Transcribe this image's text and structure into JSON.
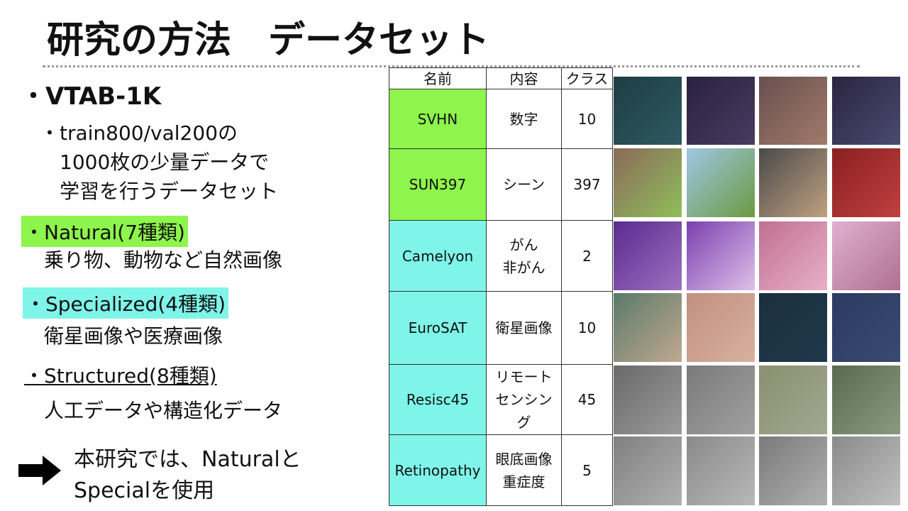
{
  "title": "研究の方法　データセット",
  "left": {
    "bullet1": "・VTAB-1K",
    "bullet1_sub_lines": [
      "・train800/val200の",
      "1000枚の少量データで",
      "学習を行うデータセット"
    ],
    "natural": {
      "label": "・Natural(7種類)",
      "desc": "乗り物、動物など自然画像"
    },
    "specialized": {
      "label": "・Specialized(4種類)",
      "desc": "衛星画像や医療画像"
    },
    "structured": {
      "label": "・Structured(8種類)",
      "desc": "人工データや構造化データ"
    },
    "conclusion_lines": [
      "本研究では、Naturalと",
      "Specialを使用"
    ]
  },
  "table": {
    "header": [
      "名前",
      "内容",
      "クラス"
    ],
    "rows": [
      {
        "name": "SVHN",
        "content": [
          "数字"
        ],
        "classes": 10
      },
      {
        "name": "SUN397",
        "content": [
          "シーン"
        ],
        "classes": 397
      },
      {
        "name": "Camelyon",
        "content": [
          "がん",
          "非がん"
        ],
        "classes": 2
      },
      {
        "name": "EuroSAT",
        "content": [
          "衛星画像"
        ],
        "classes": 10
      },
      {
        "name": "Resisc45",
        "content": [
          "リモートセンシング"
        ],
        "classes": 45
      },
      {
        "name": "Retinopathy",
        "content": [
          "眼底画像",
          "重症度"
        ],
        "classes": 5
      }
    ]
  }
}
